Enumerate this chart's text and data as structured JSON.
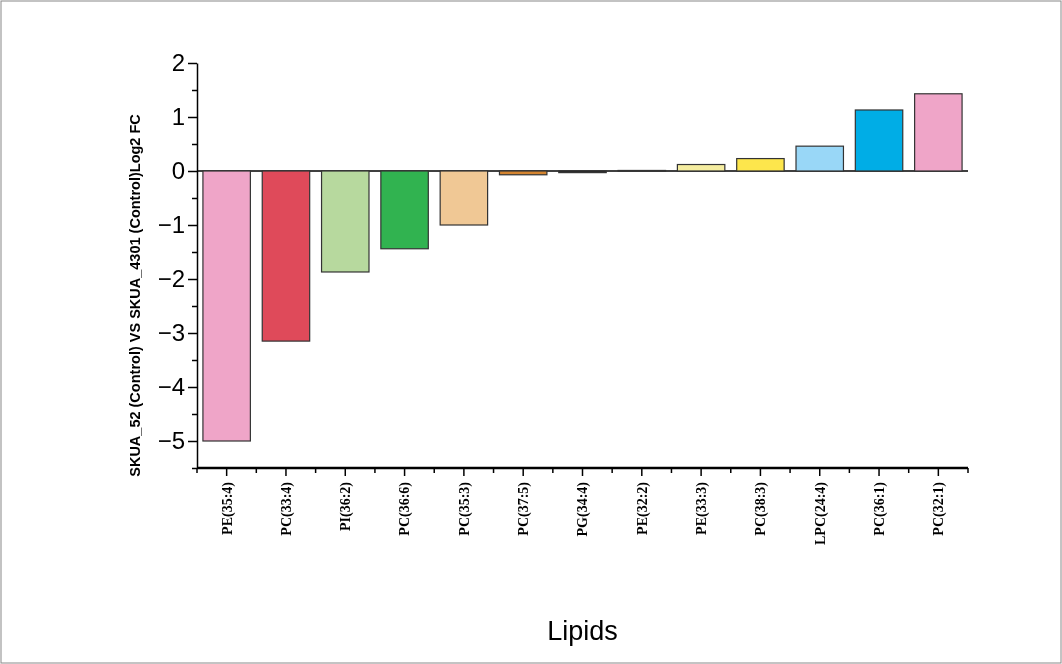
{
  "chart_data": {
    "type": "bar",
    "xlabel": "Lipids",
    "ylabel": "SKUA_52 (Control) VS SKUA_4301 (Control)Log2 FC",
    "categories": [
      "PE(35:4)",
      "PC(33:4)",
      "PI(36:2)",
      "PC(36:6)",
      "PC(35:3)",
      "PC(37:5)",
      "PG(34:4)",
      "PE(32:2)",
      "PE(33:3)",
      "PC(38:3)",
      "LPC(24:4)",
      "PC(36:1)",
      "PC(32:1)"
    ],
    "values": [
      -5.0,
      -3.15,
      -1.87,
      -1.44,
      -1.0,
      -0.07,
      -0.03,
      0.01,
      0.12,
      0.23,
      0.46,
      1.13,
      1.43
    ],
    "colors": [
      "#efa5c8",
      "#df4a5a",
      "#b7d99e",
      "#31b350",
      "#f0c895",
      "#d4842f",
      "#222222",
      "#f5f5f5",
      "#f5eda0",
      "#fde64c",
      "#99d7f7",
      "#00ade6",
      "#efa5c8"
    ],
    "ylim": [
      -5.5,
      2
    ],
    "yticks": [
      {
        "value": -5.5,
        "label": null
      },
      -5,
      {
        "value": -4.5,
        "label": null
      },
      -4,
      {
        "value": -3.5,
        "label": null
      },
      -3,
      {
        "value": -2.5,
        "label": null
      },
      -2,
      {
        "value": -1.5,
        "label": null
      },
      -1,
      {
        "value": -0.5,
        "label": null
      },
      0,
      {
        "value": 0.5,
        "label": null
      },
      1,
      {
        "value": 1.5,
        "label": null
      },
      2
    ],
    "ref_lines": [
      {
        "axis": "y",
        "value": 0
      }
    ],
    "grid": false
  }
}
